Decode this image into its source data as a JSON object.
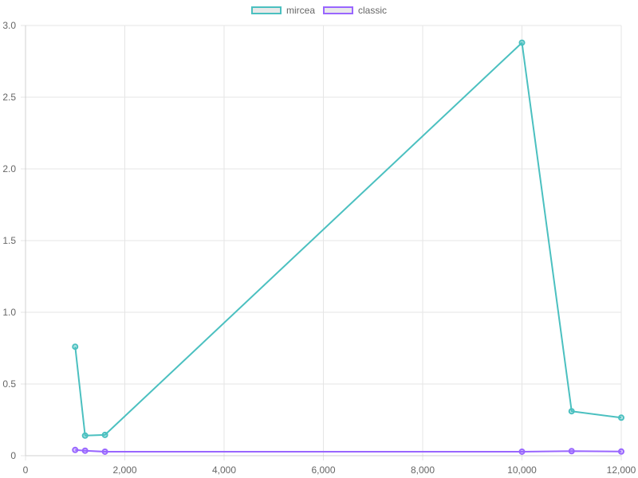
{
  "chart_data": {
    "type": "line",
    "x_range": [
      0,
      12000
    ],
    "y_range": [
      0,
      3.0
    ],
    "x_ticks": [
      0,
      2000,
      4000,
      6000,
      8000,
      10000,
      12000
    ],
    "x_tick_labels": [
      "0",
      "2,000",
      "4,000",
      "6,000",
      "8,000",
      "10,000",
      "12,000"
    ],
    "y_ticks": [
      0,
      0.5,
      1.0,
      1.5,
      2.0,
      2.5,
      3.0
    ],
    "y_tick_labels": [
      "0",
      "0.5",
      "1.0",
      "1.5",
      "2.0",
      "2.5",
      "3.0"
    ],
    "grid": true,
    "legend_position": "top",
    "series": [
      {
        "name": "mircea",
        "color": "#4bc0c0",
        "points": [
          {
            "x": 1000,
            "y": 0.76
          },
          {
            "x": 1200,
            "y": 0.14
          },
          {
            "x": 1600,
            "y": 0.145
          },
          {
            "x": 10000,
            "y": 2.88
          },
          {
            "x": 11000,
            "y": 0.31
          },
          {
            "x": 12000,
            "y": 0.265
          }
        ]
      },
      {
        "name": "classic",
        "color": "#9966ff",
        "points": [
          {
            "x": 1000,
            "y": 0.04
          },
          {
            "x": 1200,
            "y": 0.035
          },
          {
            "x": 1600,
            "y": 0.028
          },
          {
            "x": 10000,
            "y": 0.028
          },
          {
            "x": 11000,
            "y": 0.032
          },
          {
            "x": 12000,
            "y": 0.029
          }
        ]
      }
    ]
  }
}
